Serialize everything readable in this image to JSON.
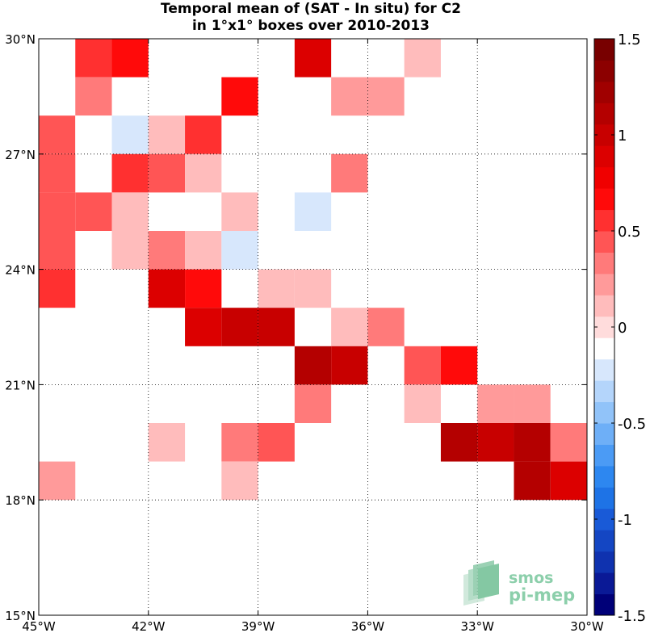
{
  "chart_data": {
    "type": "heatmap",
    "title": "Temporal mean of (SAT - In situ) for C2",
    "subtitle": "in 1°x1° boxes over 2010-2013",
    "x_ticks": [
      "45°W",
      "42°W",
      "39°W",
      "36°W",
      "33°W",
      "30°W"
    ],
    "y_ticks": [
      "30°N",
      "27°N",
      "24°N",
      "21°N",
      "18°N",
      "15°N"
    ],
    "xlim": [
      -45,
      -30
    ],
    "ylim": [
      15,
      30
    ],
    "grid": true,
    "colorbar": {
      "ticks": [
        "1.5",
        "1",
        "0.5",
        "0",
        "-0.5",
        "-1",
        "-1.5"
      ],
      "range": [
        -1.5,
        1.5
      ],
      "colors": [
        "#000078",
        "#0A1996",
        "#0F32AF",
        "#1446C3",
        "#195AD7",
        "#1E73E6",
        "#2D87F0",
        "#4B9BF5",
        "#6EAFF7",
        "#91C3F9",
        "#B4D5FB",
        "#D7E7FC",
        "#FFFFFF",
        "#FFDCDC",
        "#FFBCBC",
        "#FF9A9A",
        "#FF7A7A",
        "#FF5555",
        "#FF3030",
        "#FF0A0A",
        "#F00000",
        "#DC0000",
        "#C80000",
        "#B40000",
        "#A00000",
        "#8C0000",
        "#780000"
      ]
    },
    "cells_note": "Each cell: lon/lat of lower-left corner of 1x1 degree box, value = mean SAT - in situ",
    "cells": [
      {
        "lon": -44,
        "lat": 29,
        "value": 0.5
      },
      {
        "lon": -43,
        "lat": 29,
        "value": 0.65
      },
      {
        "lon": -38,
        "lat": 29,
        "value": 0.9
      },
      {
        "lon": -35,
        "lat": 29,
        "value": 0.15
      },
      {
        "lon": -44,
        "lat": 28,
        "value": 0.35
      },
      {
        "lon": -40,
        "lat": 28,
        "value": 0.65
      },
      {
        "lon": -37,
        "lat": 28,
        "value": 0.25
      },
      {
        "lon": -36,
        "lat": 28,
        "value": 0.25
      },
      {
        "lon": -45,
        "lat": 27,
        "value": 0.4
      },
      {
        "lon": -44,
        "lat": 27,
        "value": -0.15
      },
      {
        "lon": -43,
        "lat": 27,
        "value": -0.25
      },
      {
        "lon": -42,
        "lat": 27,
        "value": 0.15
      },
      {
        "lon": -41,
        "lat": 27,
        "value": 0.55
      },
      {
        "lon": -45,
        "lat": 26,
        "value": 0.4
      },
      {
        "lon": -43,
        "lat": 26,
        "value": 0.55
      },
      {
        "lon": -42,
        "lat": 26,
        "value": 0.4
      },
      {
        "lon": -41,
        "lat": 26,
        "value": 0.15
      },
      {
        "lon": -37,
        "lat": 26,
        "value": 0.3
      },
      {
        "lon": -45,
        "lat": 25,
        "value": 0.4
      },
      {
        "lon": -44,
        "lat": 25,
        "value": 0.4
      },
      {
        "lon": -43,
        "lat": 25,
        "value": 0.15
      },
      {
        "lon": -40,
        "lat": 25,
        "value": 0.15
      },
      {
        "lon": -39,
        "lat": 25,
        "value": -0.15
      },
      {
        "lon": -38,
        "lat": 25,
        "value": -0.25
      },
      {
        "lon": -45,
        "lat": 24,
        "value": 0.4
      },
      {
        "lon": -43,
        "lat": 24,
        "value": 0.15
      },
      {
        "lon": -42,
        "lat": 24,
        "value": 0.3
      },
      {
        "lon": -41,
        "lat": 24,
        "value": 0.15
      },
      {
        "lon": -40,
        "lat": 24,
        "value": -0.25
      },
      {
        "lon": -39,
        "lat": 24,
        "value": -0.15
      },
      {
        "lon": -38,
        "lat": 24,
        "value": -0.15
      },
      {
        "lon": -37,
        "lat": 24,
        "value": -0.15
      },
      {
        "lon": -45,
        "lat": 23,
        "value": 0.5
      },
      {
        "lon": -42,
        "lat": 23,
        "value": 0.85
      },
      {
        "lon": -41,
        "lat": 23,
        "value": 0.7
      },
      {
        "lon": -39,
        "lat": 23,
        "value": 0.15
      },
      {
        "lon": -38,
        "lat": 23,
        "value": 0.15
      },
      {
        "lon": -41,
        "lat": 22,
        "value": 0.9
      },
      {
        "lon": -40,
        "lat": 22,
        "value": 1.05
      },
      {
        "lon": -39,
        "lat": 22,
        "value": 0.95
      },
      {
        "lon": -37,
        "lat": 22,
        "value": 0.15
      },
      {
        "lon": -36,
        "lat": 22,
        "value": 0.3
      },
      {
        "lon": -38,
        "lat": 21,
        "value": 1.1
      },
      {
        "lon": -37,
        "lat": 21,
        "value": 0.95
      },
      {
        "lon": -35,
        "lat": 21,
        "value": 0.45
      },
      {
        "lon": -34,
        "lat": 21,
        "value": 0.65
      },
      {
        "lon": -42,
        "lat": 20,
        "value": -0.15
      },
      {
        "lon": -38,
        "lat": 20,
        "value": 0.3
      },
      {
        "lon": -35,
        "lat": 20,
        "value": 0.15
      },
      {
        "lon": -33,
        "lat": 20,
        "value": 0.2
      },
      {
        "lon": -32,
        "lat": 20,
        "value": 0.2
      },
      {
        "lon": -42,
        "lat": 19,
        "value": 0.15
      },
      {
        "lon": -40,
        "lat": 19,
        "value": 0.3
      },
      {
        "lon": -39,
        "lat": 19,
        "value": 0.45
      },
      {
        "lon": -34,
        "lat": 19,
        "value": 1.1
      },
      {
        "lon": -33,
        "lat": 19,
        "value": 1.05
      },
      {
        "lon": -32,
        "lat": 19,
        "value": 1.15
      },
      {
        "lon": -31,
        "lat": 19,
        "value": 0.3
      },
      {
        "lon": -45,
        "lat": 18,
        "value": 0.25
      },
      {
        "lon": -40,
        "lat": 18,
        "value": 0.15
      },
      {
        "lon": -32,
        "lat": 18,
        "value": 1.1
      },
      {
        "lon": -31,
        "lat": 18,
        "value": 0.9
      }
    ]
  },
  "logo": {
    "line1": "smos",
    "line2": "pi-mep"
  }
}
